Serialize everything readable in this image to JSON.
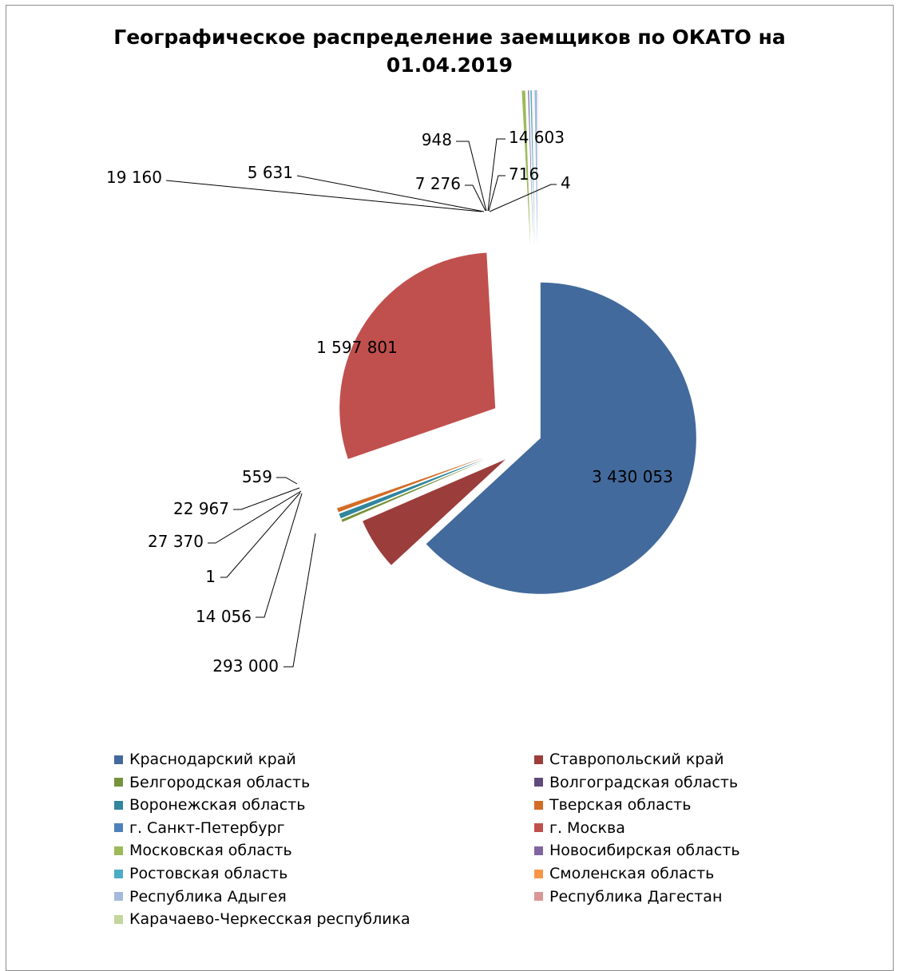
{
  "chart_data": {
    "type": "pie",
    "title": "Географическое распределение заемщиков по ОКАТО на 01.04.2019",
    "title_lines": [
      "Географическое распределение заемщиков по ОКАТО на",
      "01.04.2019"
    ],
    "legend_position": "bottom",
    "slices": [
      {
        "label": "Краснодарский край",
        "value": 3430053,
        "value_label": "3 430 053",
        "color": "#436a9c"
      },
      {
        "label": "Ставропольский край",
        "value": 293000,
        "value_label": "293 000",
        "color": "#9b3d3b"
      },
      {
        "label": "Белгородская область",
        "value": 14056,
        "value_label": "14 056",
        "color": "#76923c"
      },
      {
        "label": "Волгоградская область",
        "value": 1,
        "value_label": "1",
        "color": "#604a7b"
      },
      {
        "label": "Воронежская область",
        "value": 27370,
        "value_label": "27 370",
        "color": "#31859c"
      },
      {
        "label": "Тверская область",
        "value": 22967,
        "value_label": "22 967",
        "color": "#d46c26"
      },
      {
        "label": "г. Санкт-Петербург",
        "value": 559,
        "value_label": "559",
        "color": "#4f81bd"
      },
      {
        "label": "г. Москва",
        "value": 1597801,
        "value_label": "1 597 801",
        "color": "#c0504d"
      },
      {
        "label": "Московская область",
        "value": 19160,
        "value_label": "19 160",
        "color": "#9bbb59"
      },
      {
        "label": "Новосибирская область",
        "value": 5631,
        "value_label": "5 631",
        "color": "#8064a2"
      },
      {
        "label": "Ростовская область",
        "value": 7276,
        "value_label": "7 276",
        "color": "#4bacc6"
      },
      {
        "label": "Смоленская область",
        "value": 948,
        "value_label": "948",
        "color": "#f79646"
      },
      {
        "label": "Республика Адыгея",
        "value": 14603,
        "value_label": "14 603",
        "color": "#a5b9db"
      },
      {
        "label": "Республика Дагестан",
        "value": 716,
        "value_label": "716",
        "color": "#d99795"
      },
      {
        "label": "Карачаево-Черкесская республика",
        "value": 4,
        "value_label": "4",
        "color": "#c3d69b"
      }
    ]
  }
}
